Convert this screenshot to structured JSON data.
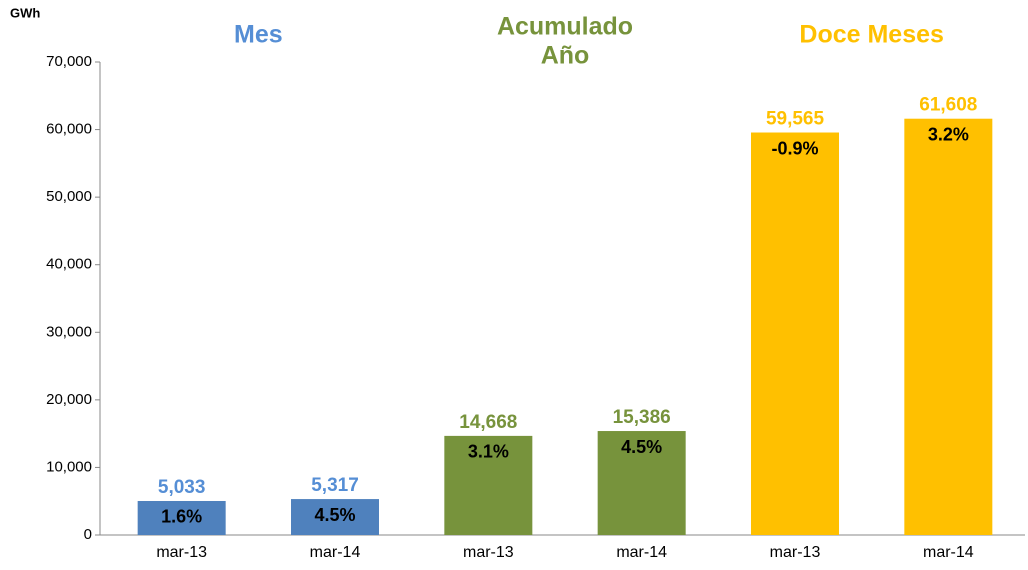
{
  "chart_data": {
    "type": "bar",
    "y_axis_label": "GWh",
    "ylim": [
      0,
      70000
    ],
    "yticks": [
      0,
      {
        "value": 10000,
        "label": "10,000"
      },
      {
        "value": 20000,
        "label": "20,000"
      },
      {
        "value": 30000,
        "label": "30,000"
      },
      {
        "value": 40000,
        "label": "40,000"
      },
      {
        "value": 50000,
        "label": "50,000"
      },
      {
        "value": 60000,
        "label": "60,000"
      },
      {
        "value": 70000,
        "label": "70,000"
      }
    ],
    "groups": [
      {
        "title": [
          "Mes"
        ],
        "color": "#4f81bd",
        "label_color": "#558ed5",
        "categories": [
          "mar-13",
          "mar-14"
        ],
        "values": [
          5033,
          5317
        ],
        "value_labels": [
          "5,033",
          "5,317"
        ],
        "change_labels": [
          "1.6%",
          "4.5%"
        ]
      },
      {
        "title": [
          "Acumulado",
          "Año"
        ],
        "color": "#77933c",
        "label_color": "#77933c",
        "categories": [
          "mar-13",
          "mar-14"
        ],
        "values": [
          14668,
          15386
        ],
        "value_labels": [
          "14,668",
          "15,386"
        ],
        "change_labels": [
          "3.1%",
          "4.5%"
        ]
      },
      {
        "title": [
          "Doce Meses"
        ],
        "color": "#ffc000",
        "label_color": "#ffc000",
        "categories": [
          "mar-13",
          "mar-14"
        ],
        "values": [
          59565,
          61608
        ],
        "value_labels": [
          "59,565",
          "61,608"
        ],
        "change_labels": [
          "-0.9%",
          "3.2%"
        ]
      }
    ]
  }
}
